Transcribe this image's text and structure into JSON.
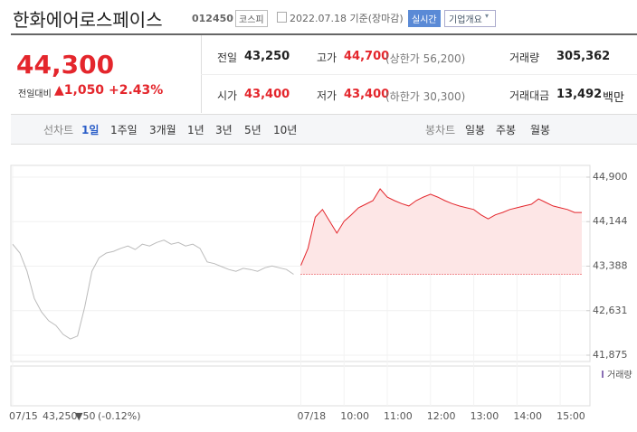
{
  "header": {
    "name": "한화에어로스페이스",
    "code": "012450",
    "market": "코스피",
    "date": "2022.07.18 기준(장마감)",
    "realtime": "실시간",
    "overview": "기업개요"
  },
  "quote": {
    "price": "44,300",
    "change_label": "전일대비",
    "change": "▲1,050",
    "change_rate": "+2.43%"
  },
  "stats": [
    {
      "label": "전일",
      "value": "43,250"
    },
    {
      "label": "고가",
      "value": "44,700",
      "sub": "(상한가 56,200)"
    },
    {
      "label": "거래량",
      "value": "305,362"
    },
    {
      "label": "시가",
      "value": "43,400"
    },
    {
      "label": "저가",
      "value": "43,400",
      "sub": "(하한가 30,300)"
    },
    {
      "label": "거래대금",
      "value": "13,492",
      "unit": "백만"
    }
  ],
  "tabs": {
    "line_label": "선차트",
    "line": [
      "1일",
      "1주일",
      "3개월",
      "1년",
      "3년",
      "5년",
      "10년"
    ],
    "candle_label": "봉차트",
    "candle": [
      "일봉",
      "주봉",
      "월봉"
    ]
  },
  "chart_data": {
    "type": "line",
    "categories": [
      "07/15",
      null,
      null,
      null,
      null,
      null,
      null,
      null,
      null,
      null,
      null,
      null,
      null,
      null,
      null,
      null,
      null,
      null,
      null,
      null,
      null,
      null,
      null,
      null,
      null,
      null,
      null,
      null,
      null,
      null,
      null,
      null,
      null,
      null,
      null,
      null,
      null,
      null,
      null,
      null,
      "07/18",
      null,
      null,
      null,
      null,
      null,
      "10:00",
      null,
      null,
      null,
      null,
      null,
      "11:00",
      null,
      null,
      null,
      null,
      null,
      "12:00",
      null,
      null,
      null,
      null,
      null,
      "13:00",
      null,
      null,
      null,
      null,
      null,
      "14:00",
      null,
      null,
      null,
      null,
      null,
      "15:00",
      null,
      null,
      null
    ],
    "series": [
      {
        "color": "#bbbbbb",
        "values": [
          43760,
          43610,
          43300,
          42840,
          42610,
          42460,
          42380,
          42230,
          42150,
          42200,
          42690,
          43300,
          43530,
          43610,
          43640,
          43690,
          43730,
          43670,
          43760,
          43730,
          43790,
          43830,
          43760,
          43790,
          43730,
          43760,
          43690,
          43460,
          43430,
          43380,
          43330,
          43300,
          43350,
          43330,
          43300,
          43360,
          43390,
          43360,
          43330,
          43250,
          null,
          null,
          null,
          null,
          null,
          null,
          null,
          null,
          null,
          null,
          null,
          null,
          null,
          null,
          null,
          null,
          null,
          null,
          null,
          null,
          null,
          null,
          null,
          null,
          null,
          null,
          null,
          null,
          null,
          null,
          null,
          null,
          null,
          null,
          null,
          null,
          null,
          null,
          null,
          null
        ]
      },
      {
        "color": "#e4262c",
        "area_color": "#fde6e6",
        "values": [
          null,
          null,
          null,
          null,
          null,
          null,
          null,
          null,
          null,
          null,
          null,
          null,
          null,
          null,
          null,
          null,
          null,
          null,
          null,
          null,
          null,
          null,
          null,
          null,
          null,
          null,
          null,
          null,
          null,
          null,
          null,
          null,
          null,
          null,
          null,
          null,
          null,
          null,
          null,
          null,
          43400,
          43690,
          44220,
          44350,
          44150,
          43950,
          44150,
          44260,
          44380,
          44440,
          44500,
          44700,
          44560,
          44500,
          44450,
          44410,
          44500,
          44560,
          44610,
          44560,
          44500,
          44450,
          44410,
          44380,
          44350,
          44260,
          44190,
          44260,
          44300,
          44350,
          44380,
          44410,
          44440,
          44530,
          44470,
          44410,
          44380,
          44350,
          44300,
          44300
        ]
      }
    ],
    "baseline": 43250,
    "baseline_color": "#e4262c",
    "ylim": [
      41875,
      44900
    ],
    "yticks": [
      {
        "value": 41875,
        "label": "41,875"
      },
      {
        "value": 42631,
        "label": "42,631"
      },
      {
        "value": 43388,
        "label": "43,388"
      },
      {
        "value": 44144,
        "label": "44,144"
      },
      {
        "value": 44900,
        "label": "44,900"
      }
    ],
    "grid": true,
    "volume_label": "거래량",
    "legend": {
      "date": "07/15",
      "price": "43,250",
      "change": "▼50",
      "rate": "(-0.12%)"
    }
  }
}
